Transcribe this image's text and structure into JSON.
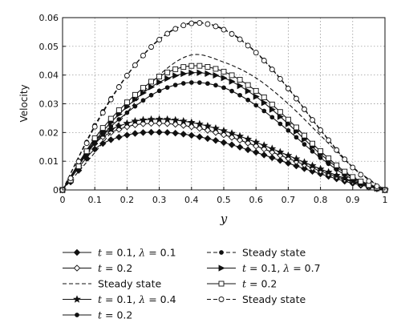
{
  "chart_data": {
    "type": "line",
    "xlabel": "y",
    "ylabel": "Velocity",
    "xlim": [
      0,
      1
    ],
    "ylim": [
      0,
      0.06
    ],
    "x_ticks": [
      "0",
      "0.1",
      "0.2",
      "0.3",
      "0.4",
      "0.5",
      "0.6",
      "0.7",
      "0.8",
      "0.9",
      "1"
    ],
    "y_ticks": [
      "0",
      "0.01",
      "0.02",
      "0.03",
      "0.04",
      "0.05",
      "0.06"
    ],
    "grid": true,
    "legend_placement": "bottom",
    "x": [
      0,
      0.1,
      0.2,
      0.3,
      0.4,
      0.5,
      0.6,
      0.7,
      0.8,
      0.9,
      1
    ],
    "series": [
      {
        "legend": {
          "var": "t",
          "text": " = 0.1, ",
          "var2": "λ",
          "text2": " = 0.1"
        },
        "marker": "diamond-filled",
        "dash": "solid",
        "values": [
          0,
          0.0142,
          0.0191,
          0.0201,
          0.019,
          0.0165,
          0.0131,
          0.0093,
          0.0056,
          0.0023,
          0
        ]
      },
      {
        "legend": {
          "var": "t",
          "text": " = 0.2"
        },
        "marker": "diamond-open",
        "dash": "solid",
        "values": [
          0,
          0.0162,
          0.022,
          0.0232,
          0.022,
          0.0192,
          0.0153,
          0.011,
          0.0066,
          0.0028,
          0
        ]
      },
      {
        "legend": {
          "text": "Steady state"
        },
        "marker": "none",
        "dash": "dashed",
        "values": [
          0,
          0.013,
          0.027,
          0.04,
          0.047,
          0.0445,
          0.039,
          0.03,
          0.019,
          0.008,
          0
        ]
      },
      {
        "legend": {
          "var": "t",
          "text": " = 0.1, ",
          "var2": "λ",
          "text2": " = 0.4"
        },
        "marker": "star",
        "dash": "solid",
        "values": [
          0,
          0.017,
          0.0232,
          0.0246,
          0.0235,
          0.0206,
          0.0166,
          0.012,
          0.0073,
          0.0031,
          0
        ]
      },
      {
        "legend": {
          "var": "t",
          "text": " = 0.2"
        },
        "marker": "dot",
        "dash": "solid",
        "values": [
          0,
          0.0162,
          0.0269,
          0.0345,
          0.0374,
          0.0356,
          0.0295,
          0.0207,
          0.0112,
          0.0037,
          0
        ]
      },
      {
        "legend": {
          "text": "Steady state"
        },
        "marker": "dot",
        "dash": "dashed",
        "values": [
          0,
          0.0225,
          0.04,
          0.0525,
          0.0582,
          0.056,
          0.048,
          0.0355,
          0.021,
          0.008,
          0
        ]
      },
      {
        "legend": {
          "var": "t",
          "text": " = 0.1, ",
          "var2": "λ",
          "text2": " = 0.7"
        },
        "marker": "triangle-right",
        "dash": "solid",
        "values": [
          0,
          0.017,
          0.029,
          0.0375,
          0.0408,
          0.039,
          0.0325,
          0.023,
          0.0125,
          0.0042,
          0
        ]
      },
      {
        "legend": {
          "var": "t",
          "text": " = 0.2"
        },
        "marker": "square-open",
        "dash": "solid",
        "values": [
          0,
          0.018,
          0.0305,
          0.0395,
          0.0432,
          0.0412,
          0.0345,
          0.0245,
          0.0135,
          0.0045,
          0
        ]
      },
      {
        "legend": {
          "text": "Steady state"
        },
        "marker": "circle-open",
        "dash": "dashed",
        "values": [
          0,
          0.022,
          0.0398,
          0.0523,
          0.058,
          0.0558,
          0.0478,
          0.0353,
          0.0208,
          0.0078,
          0
        ]
      }
    ]
  },
  "legend_layout": {
    "columns": [
      [
        0,
        1,
        2,
        3,
        4
      ],
      [
        5,
        6,
        7,
        8
      ]
    ]
  }
}
